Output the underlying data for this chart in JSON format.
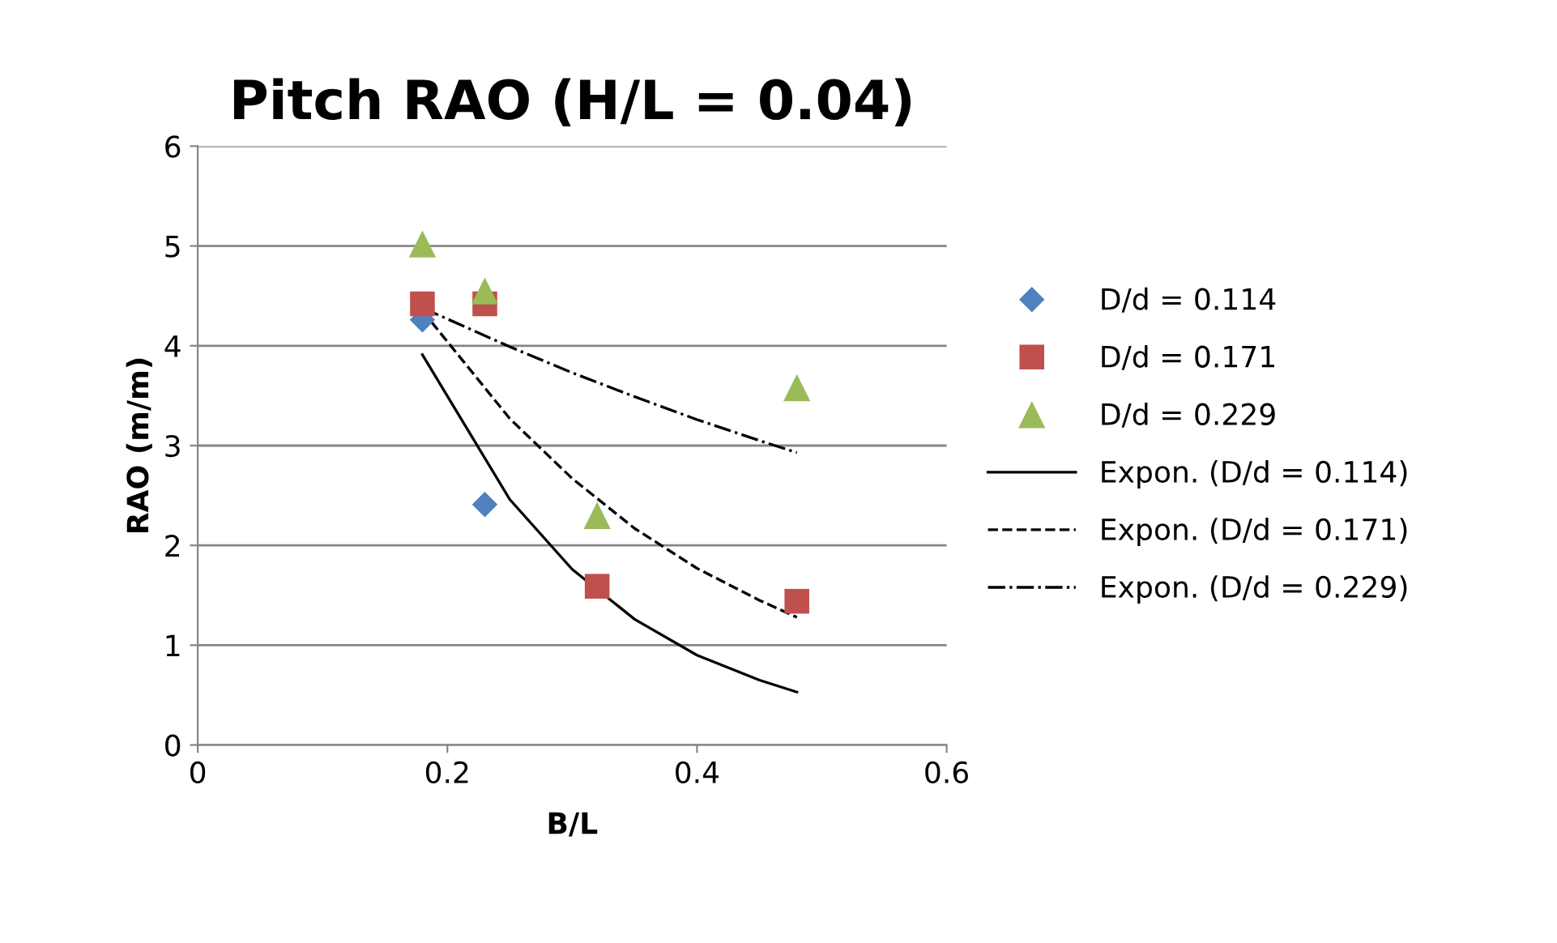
{
  "chart_data": {
    "type": "scatter",
    "title": "Pitch RAO (H/L = 0.04)",
    "xlabel": "B/L",
    "ylabel": "RAO (m/m)",
    "xlim": [
      0,
      0.6
    ],
    "xticks": [
      0,
      0.2,
      0.4,
      0.6
    ],
    "ylim": [
      0,
      6
    ],
    "yticks": [
      0,
      1,
      2,
      3,
      4,
      5,
      6
    ],
    "grid": "y",
    "legend": "right",
    "series": [
      {
        "name": "D/d = 0.114",
        "marker": "diamond",
        "color": "#4f81bd",
        "x": [
          0.18,
          0.23
        ],
        "values": [
          4.26,
          2.41
        ]
      },
      {
        "name": "D/d = 0.171",
        "marker": "square",
        "color": "#c0504d",
        "x": [
          0.18,
          0.23,
          0.32,
          0.48
        ],
        "values": [
          4.42,
          4.42,
          1.59,
          1.44
        ]
      },
      {
        "name": "D/d = 0.229",
        "marker": "triangle",
        "color": "#9bbb59",
        "x": [
          0.18,
          0.23,
          0.32,
          0.48
        ],
        "values": [
          5.02,
          4.55,
          2.3,
          3.58
        ]
      },
      {
        "name": "Expon. (D/d = 0.114)",
        "type": "line",
        "line_style": "solid",
        "color": "#000000",
        "x": [
          0.18,
          0.25,
          0.3,
          0.35,
          0.4,
          0.45,
          0.48
        ],
        "values": [
          3.91,
          2.46,
          1.76,
          1.26,
          0.9,
          0.65,
          0.53
        ]
      },
      {
        "name": "Expon. (D/d = 0.171)",
        "type": "line",
        "line_style": "dashed",
        "color": "#000000",
        "x": [
          0.18,
          0.25,
          0.3,
          0.35,
          0.4,
          0.45,
          0.48
        ],
        "values": [
          4.35,
          3.27,
          2.67,
          2.17,
          1.77,
          1.45,
          1.28
        ]
      },
      {
        "name": "Expon. (D/d = 0.229)",
        "type": "line",
        "line_style": "dashdot",
        "color": "#000000",
        "x": [
          0.18,
          0.25,
          0.3,
          0.35,
          0.4,
          0.45,
          0.48
        ],
        "values": [
          4.38,
          3.99,
          3.73,
          3.49,
          3.26,
          3.05,
          2.93
        ]
      }
    ]
  }
}
